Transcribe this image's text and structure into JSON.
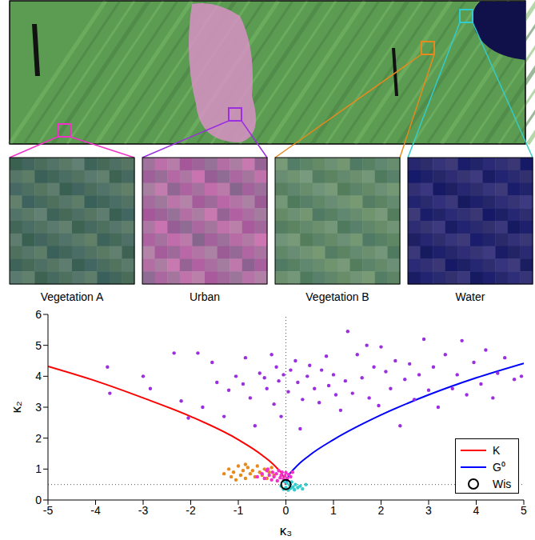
{
  "image_panels": [
    {
      "label": "Vegetation A",
      "color": "#f032c8"
    },
    {
      "label": "Urban",
      "color": "#9b2fe0"
    },
    {
      "label": "Vegetation B",
      "color": "#e8891c"
    },
    {
      "label": "Water",
      "color": "#33cccc"
    }
  ],
  "chart_data": {
    "type": "scatter",
    "xlabel": "κ₃",
    "ylabel": "κ₂",
    "xlim": [
      -5,
      5
    ],
    "ylim": [
      0,
      6
    ],
    "xticks": [
      -5,
      -4,
      -3,
      -2,
      -1,
      0,
      1,
      2,
      3,
      4,
      5
    ],
    "yticks": [
      0,
      1,
      2,
      3,
      4,
      5,
      6
    ],
    "legend": "lower right",
    "series": [
      {
        "type": "scatter",
        "marker": "dot",
        "color": "#9b2fe0",
        "x": [
          -3.75,
          -3.7,
          -3.0,
          -2.85,
          -2.35,
          -2.2,
          -2.05,
          -1.85,
          -1.75,
          -1.55,
          -1.45,
          -1.3,
          -1.2,
          -1.05,
          -0.9,
          -0.85,
          -0.75,
          -0.65,
          -0.55,
          -0.45,
          -0.4,
          -0.3,
          -0.25,
          -0.2,
          -0.15,
          -0.1,
          -0.05,
          0.05,
          0.1,
          0.2,
          0.25,
          0.3,
          0.35,
          0.45,
          0.5,
          0.6,
          0.7,
          0.75,
          0.85,
          0.9,
          1.0,
          1.05,
          1.15,
          1.25,
          1.3,
          1.4,
          1.5,
          1.6,
          1.7,
          1.75,
          1.85,
          1.95,
          2.0,
          2.1,
          2.2,
          2.3,
          2.4,
          2.5,
          2.6,
          2.7,
          2.8,
          2.9,
          3.0,
          3.1,
          3.2,
          3.35,
          3.5,
          3.6,
          3.7,
          3.8,
          3.95,
          4.1,
          4.2,
          4.35,
          4.45,
          4.6,
          4.8,
          4.95
        ],
        "values": [
          4.3,
          3.45,
          4.0,
          3.6,
          4.75,
          3.2,
          2.65,
          4.75,
          3.0,
          4.45,
          3.8,
          2.7,
          3.55,
          4.0,
          3.75,
          4.6,
          3.3,
          2.4,
          4.1,
          3.95,
          3.6,
          4.7,
          3.1,
          4.3,
          3.85,
          2.7,
          4.05,
          3.5,
          4.2,
          4.5,
          3.8,
          2.3,
          3.25,
          4.0,
          4.35,
          3.6,
          3.15,
          4.2,
          4.65,
          3.7,
          4.05,
          3.4,
          2.9,
          3.85,
          5.45,
          3.45,
          4.7,
          3.95,
          5.0,
          3.3,
          4.3,
          3.05,
          4.95,
          4.15,
          3.6,
          4.5,
          2.4,
          3.9,
          4.4,
          3.25,
          4.05,
          5.2,
          3.55,
          4.3,
          3.0,
          4.7,
          3.6,
          4.05,
          5.15,
          3.4,
          4.45,
          3.75,
          4.85,
          3.3,
          4.1,
          4.6,
          3.9,
          4.0
        ]
      },
      {
        "type": "scatter",
        "marker": "dot",
        "color": "#e8891c",
        "x": [
          -1.3,
          -1.2,
          -1.15,
          -1.1,
          -1.0,
          -0.95,
          -0.9,
          -0.85,
          -0.8,
          -0.75,
          -0.7,
          -0.65,
          -0.6,
          -0.55,
          -0.5,
          -0.45,
          -0.4,
          -0.35,
          -0.3,
          -0.25,
          -1.05,
          -0.85
        ],
        "values": [
          0.85,
          1.0,
          0.75,
          0.9,
          1.1,
          0.8,
          0.95,
          0.7,
          1.05,
          0.85,
          0.95,
          0.75,
          1.1,
          0.9,
          0.8,
          1.0,
          0.7,
          0.9,
          1.05,
          0.8,
          0.65,
          1.15
        ]
      },
      {
        "type": "scatter",
        "marker": "dot",
        "color": "#f032c8",
        "x": [
          -0.5,
          -0.45,
          -0.4,
          -0.35,
          -0.3,
          -0.28,
          -0.25,
          -0.2,
          -0.18,
          -0.15,
          -0.12,
          -0.1,
          -0.08,
          -0.05,
          -0.02,
          0.0,
          0.03,
          0.06,
          0.1,
          0.14,
          -0.6,
          -0.38
        ],
        "values": [
          0.85,
          0.7,
          0.95,
          0.8,
          0.65,
          0.9,
          0.75,
          0.85,
          0.62,
          0.95,
          0.72,
          0.8,
          0.9,
          0.68,
          0.78,
          0.88,
          0.7,
          0.82,
          0.75,
          0.9,
          0.75,
          1.0
        ]
      },
      {
        "type": "scatter",
        "marker": "dot",
        "color": "#33cccc",
        "x": [
          -0.1,
          -0.05,
          0.0,
          0.02,
          0.05,
          0.08,
          0.1,
          0.12,
          0.15,
          0.18,
          0.2,
          0.25,
          0.3,
          0.35,
          0.42,
          -0.03
        ],
        "values": [
          0.45,
          0.35,
          0.4,
          0.55,
          0.32,
          0.48,
          0.38,
          0.58,
          0.42,
          0.33,
          0.5,
          0.4,
          0.45,
          0.36,
          0.5,
          0.6
        ]
      },
      {
        "name": "K",
        "type": "line",
        "line_style": "solid",
        "color": "#ff0000",
        "x": [
          -5,
          -4,
          -3,
          -2,
          -1,
          -0.5,
          -0.2,
          -0.05,
          0
        ],
        "values": [
          4.32,
          3.85,
          3.3,
          2.7,
          1.95,
          1.45,
          1.05,
          0.75,
          0.5
        ]
      },
      {
        "name": "G⁰",
        "type": "line",
        "line_style": "solid",
        "color": "#0000ff",
        "x": [
          0,
          0.05,
          0.2,
          0.5,
          1,
          2,
          3,
          4,
          5
        ],
        "values": [
          0.5,
          0.75,
          1.05,
          1.45,
          1.95,
          2.75,
          3.4,
          3.95,
          4.42
        ]
      },
      {
        "name": "Wis",
        "type": "scatter",
        "marker": "circle",
        "color": "#000000",
        "x": [
          0
        ],
        "values": [
          0.5
        ]
      }
    ]
  }
}
